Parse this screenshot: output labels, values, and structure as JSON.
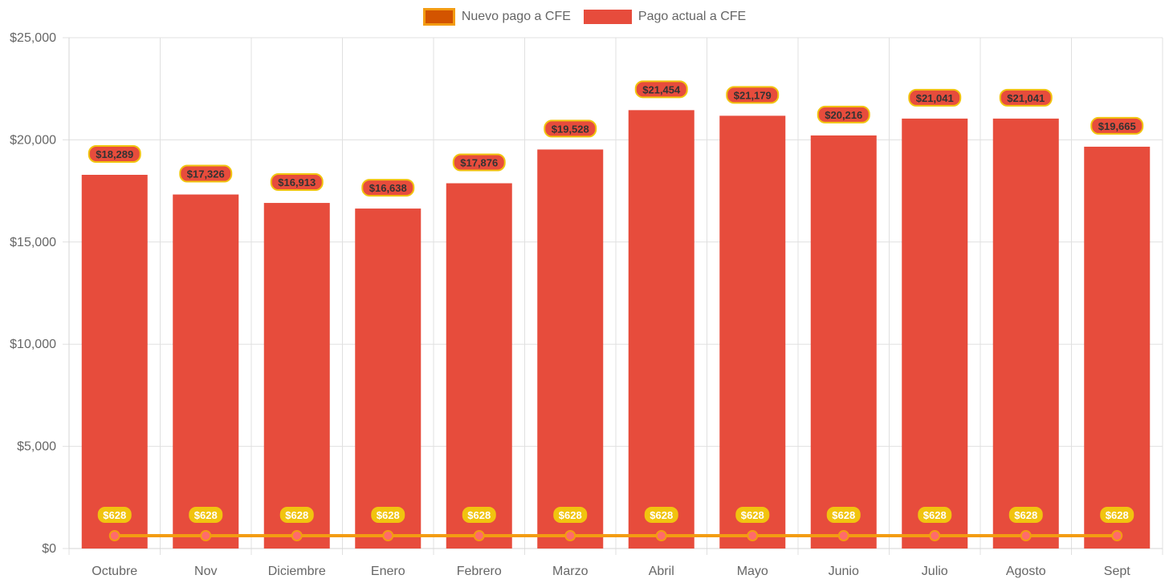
{
  "chart_data": {
    "type": "bar",
    "title": "",
    "xlabel": "",
    "ylabel": "",
    "categories": [
      "Octubre",
      "Nov",
      "Diciembre",
      "Enero",
      "Febrero",
      "Marzo",
      "Abril",
      "Mayo",
      "Junio",
      "Julio",
      "Agosto",
      "Sept"
    ],
    "ylim": [
      0,
      25000
    ],
    "yticks": [
      0,
      5000,
      10000,
      15000,
      20000,
      25000
    ],
    "ytick_labels": [
      "$0",
      "$5,000",
      "$10,000",
      "$15,000",
      "$20,000",
      "$25,000"
    ],
    "grid": true,
    "legend_position": "top-center",
    "series": [
      {
        "name": "Nuevo pago a CFE",
        "type": "line",
        "color": "#f39c12",
        "point_color": "#ff6b6b",
        "label_bg": "#f1c40f",
        "values": [
          628,
          628,
          628,
          628,
          628,
          628,
          628,
          628,
          628,
          628,
          628,
          628
        ],
        "labels": [
          "$628",
          "$628",
          "$628",
          "$628",
          "$628",
          "$628",
          "$628",
          "$628",
          "$628",
          "$628",
          "$628",
          "$628"
        ]
      },
      {
        "name": "Pago actual a CFE",
        "type": "bar",
        "color": "#e74c3c",
        "label_border": "#f1c40f",
        "values": [
          18289,
          17326,
          16913,
          16638,
          17876,
          19528,
          21454,
          21179,
          20216,
          21041,
          21041,
          19665
        ],
        "labels": [
          "$18,289",
          "$17,326",
          "$16,913",
          "$16,638",
          "$17,876",
          "$19,528",
          "$21,454",
          "$21,179",
          "$20,216",
          "$21,041",
          "$21,041",
          "$19,665"
        ]
      }
    ]
  },
  "legend": {
    "line_label": "Nuevo pago a CFE",
    "bar_label": "Pago actual a CFE"
  }
}
